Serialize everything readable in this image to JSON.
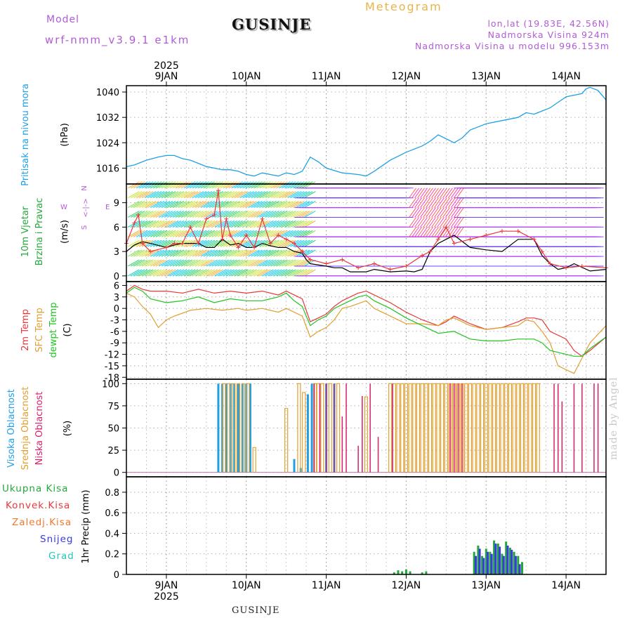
{
  "header": {
    "model_label": "Model",
    "model_name": "wrf-nmm_v3.9.1  e1km",
    "station": "GUSINJE",
    "title": "Meteogram",
    "lonlat": "lon,lat (19.83E, 42.56N)",
    "elevation": "Nadmorska Visina 924m",
    "model_elevation": "Nadmorska Visina u modelu 996.153m"
  },
  "footer": {
    "station": "GUSINJE",
    "watermark": "made by Angel"
  },
  "colors": {
    "pressure": "#1ea0e6",
    "temp2m": "#e8383a",
    "sfc_temp": "#e0a030",
    "dewpoint": "#22c422",
    "cloud_high": "#1ea0e6",
    "cloud_mid": "#e0a030",
    "cloud_low": "#d8206a",
    "precip_total": "#22a83a",
    "precip_conv": "#e8383a",
    "precip_large": "#f07a30",
    "snow": "#3a3ae0",
    "grad": "#20c8c0",
    "wind_mean": "#000000",
    "wind_gust": "#e8383a",
    "axis_label_wind": "#22a83a"
  },
  "chart_data": [
    {
      "type": "line",
      "panel": "pressure",
      "ylabel": [
        "Pritisak na nivou mora",
        "(hPa)"
      ],
      "yticks": [
        1016,
        1024,
        1032,
        1040
      ],
      "ylim": [
        1011,
        1042
      ],
      "grid": true,
      "top_axis": {
        "year": "2025",
        "days": [
          "9JAN",
          "10JAN",
          "11JAN",
          "12JAN",
          "13JAN",
          "14JAN"
        ]
      },
      "x_days": [
        8.5,
        14.5
      ],
      "series": [
        {
          "x": [
            8.5,
            8.6,
            8.75,
            8.9,
            9.0,
            9.1,
            9.2,
            9.3,
            9.4,
            9.5,
            9.6,
            9.7,
            9.8,
            9.9,
            10.0,
            10.1,
            10.2,
            10.3,
            10.4,
            10.5,
            10.6,
            10.65,
            10.7,
            10.8,
            10.9,
            11.0,
            11.2,
            11.4,
            11.5,
            11.6,
            11.8,
            12.0,
            12.2,
            12.3,
            12.4,
            12.6,
            12.7,
            12.8,
            13.0,
            13.2,
            13.4,
            13.5,
            13.6,
            13.8,
            14.0,
            14.2,
            14.25,
            14.3,
            14.4,
            14.5
          ],
          "y": [
            1016.5,
            1017,
            1018.5,
            1019.5,
            1020,
            1020,
            1019,
            1018.5,
            1017.5,
            1016.5,
            1016,
            1015.5,
            1015.5,
            1015,
            1014,
            1013.5,
            1014.5,
            1014,
            1013.5,
            1014.5,
            1014,
            1014.5,
            1015,
            1019.5,
            1018,
            1016,
            1014.5,
            1014,
            1013.5,
            1015,
            1018.5,
            1021,
            1023,
            1024.5,
            1026.5,
            1024,
            1025.5,
            1028,
            1030,
            1031,
            1032,
            1033.5,
            1033,
            1035,
            1038.5,
            1039.5,
            1041,
            1041.5,
            1040.5,
            1037.5
          ]
        }
      ]
    },
    {
      "type": "line",
      "panel": "wind",
      "ylabel": [
        "10m Vjetar",
        "Brzina i Pravac",
        "(m/s)"
      ],
      "compass": [
        "N",
        "W",
        "E",
        "S",
        "<-|->"
      ],
      "yticks": [
        0,
        3,
        6,
        9
      ],
      "ylim": [
        -0.7,
        11.3
      ],
      "grid": true,
      "series": [
        {
          "name": "mean",
          "x": [
            8.5,
            8.6,
            8.7,
            8.8,
            9.0,
            9.1,
            9.2,
            9.4,
            9.5,
            9.6,
            9.7,
            9.8,
            9.9,
            10.0,
            10.1,
            10.2,
            10.3,
            10.4,
            10.5,
            10.6,
            10.7,
            10.75,
            10.8,
            11.0,
            11.1,
            11.2,
            11.3,
            11.5,
            11.6,
            11.8,
            12.0,
            12.1,
            12.2,
            12.3,
            12.4,
            12.5,
            12.6,
            12.8,
            13.0,
            13.2,
            13.4,
            13.6,
            13.65,
            13.7,
            13.8,
            13.9,
            14.0,
            14.1,
            14.3,
            14.5
          ],
          "y": [
            3.0,
            3.8,
            4.2,
            4.0,
            3.5,
            3.8,
            4.0,
            4.0,
            3.5,
            3.5,
            4.5,
            3.8,
            4.0,
            3.5,
            3.5,
            4.0,
            3.7,
            3.5,
            3.5,
            3.0,
            2.8,
            2.0,
            1.5,
            1.2,
            1.0,
            1.0,
            0.5,
            0.5,
            0.8,
            0.5,
            0.6,
            0.5,
            0.8,
            3.0,
            4.0,
            4.5,
            5.0,
            3.5,
            3.2,
            3.0,
            4.5,
            4.5,
            3.5,
            2.5,
            1.5,
            0.8,
            1.0,
            1.5,
            0.6,
            0.8
          ]
        },
        {
          "name": "gust",
          "x": [
            8.5,
            8.6,
            8.65,
            8.7,
            8.8,
            9.0,
            9.1,
            9.2,
            9.3,
            9.4,
            9.5,
            9.6,
            9.65,
            9.7,
            9.75,
            9.8,
            9.9,
            10.0,
            10.1,
            10.2,
            10.3,
            10.4,
            10.5,
            10.6,
            10.7,
            10.8,
            11.0,
            11.2,
            11.4,
            11.6,
            11.8,
            12.0,
            12.2,
            12.3,
            12.4,
            12.5,
            12.6,
            12.8,
            13.0,
            13.2,
            13.4,
            13.6,
            13.7,
            13.8,
            14.0,
            14.2,
            14.5
          ],
          "y": [
            4.0,
            6.5,
            7.5,
            4.0,
            3.0,
            3.5,
            4.0,
            4.0,
            6.0,
            4.0,
            7.0,
            7.5,
            10.5,
            4.5,
            7.0,
            5.0,
            3.5,
            5.0,
            3.5,
            7.0,
            4.0,
            5.0,
            4.5,
            4.0,
            3.0,
            2.0,
            1.5,
            2.0,
            1.0,
            1.5,
            0.8,
            1.2,
            2.5,
            3.0,
            4.5,
            6.0,
            4.0,
            4.5,
            5.0,
            5.5,
            5.5,
            4.5,
            3.0,
            1.5,
            1.0,
            1.2,
            1.0
          ]
        }
      ],
      "vectors": {
        "rows": [
          0,
          1,
          2,
          3,
          4,
          5,
          6,
          7,
          8,
          9,
          10,
          11
        ],
        "note": "wind barb arrows colored by speed"
      }
    },
    {
      "type": "line",
      "panel": "temperature",
      "ylabel": [
        "2m Temp",
        "SFC Temp",
        "dewpt Temp",
        "(C)"
      ],
      "yticks": [
        -18,
        -15,
        -12,
        -9,
        -6,
        -3,
        0,
        3,
        6
      ],
      "ylim": [
        -18.5,
        7
      ],
      "grid": true,
      "series": [
        {
          "name": "2m Temp",
          "x": [
            8.5,
            8.6,
            8.7,
            8.8,
            9.0,
            9.2,
            9.4,
            9.6,
            9.8,
            10.0,
            10.2,
            10.4,
            10.5,
            10.6,
            10.7,
            10.8,
            10.9,
            11.0,
            11.1,
            11.2,
            11.3,
            11.4,
            11.5,
            11.6,
            11.8,
            12.0,
            12.2,
            12.4,
            12.5,
            12.6,
            12.8,
            13.0,
            13.2,
            13.4,
            13.5,
            13.6,
            13.7,
            13.8,
            14.0,
            14.1,
            14.2,
            14.3,
            14.5
          ],
          "y": [
            4.5,
            6.0,
            5.0,
            4.5,
            4.5,
            4.0,
            5.0,
            4.0,
            4.5,
            4.0,
            4.5,
            3.5,
            4.5,
            3.5,
            2.5,
            -3.5,
            -2.5,
            -1.5,
            0.5,
            2.0,
            3.0,
            4.0,
            4.5,
            3.5,
            1.5,
            -1.0,
            -3.0,
            -4.5,
            -3.5,
            -2.0,
            -4.0,
            -5.5,
            -5.0,
            -3.5,
            -2.5,
            -2.5,
            -3.0,
            -6.0,
            -8.0,
            -11.0,
            -12.5,
            -11.0,
            -7.5
          ]
        },
        {
          "name": "SFC Temp",
          "x": [
            8.5,
            8.6,
            8.7,
            8.8,
            8.9,
            9.0,
            9.1,
            9.3,
            9.5,
            9.7,
            9.9,
            10.0,
            10.2,
            10.4,
            10.5,
            10.6,
            10.7,
            10.8,
            10.9,
            11.0,
            11.1,
            11.2,
            11.3,
            11.5,
            11.6,
            11.8,
            12.0,
            12.2,
            12.4,
            12.5,
            12.6,
            12.8,
            13.0,
            13.2,
            13.4,
            13.5,
            13.6,
            13.7,
            13.8,
            13.9,
            14.0,
            14.1,
            14.2,
            14.3,
            14.5
          ],
          "y": [
            4.0,
            3.0,
            0.5,
            -1.5,
            -5.0,
            -3.0,
            -2.0,
            -0.5,
            0.0,
            -0.5,
            0.0,
            -0.5,
            0.0,
            -1.0,
            0.0,
            -1.0,
            -2.0,
            -7.5,
            -6.0,
            -5.0,
            -3.0,
            0.0,
            0.5,
            2.0,
            0.0,
            -2.0,
            -4.0,
            -4.0,
            -4.5,
            -3.0,
            -2.5,
            -4.5,
            -5.5,
            -5.0,
            -4.5,
            -3.0,
            -3.5,
            -6.0,
            -9.0,
            -15.0,
            -16.0,
            -17.0,
            -13.0,
            -9.0,
            -4.5
          ]
        },
        {
          "name": "dewpt Temp",
          "x": [
            8.5,
            8.6,
            8.7,
            8.8,
            9.0,
            9.2,
            9.4,
            9.6,
            9.8,
            10.0,
            10.2,
            10.4,
            10.5,
            10.6,
            10.7,
            10.8,
            10.9,
            11.0,
            11.1,
            11.2,
            11.3,
            11.4,
            11.5,
            11.6,
            11.8,
            12.0,
            12.2,
            12.4,
            12.6,
            12.8,
            13.0,
            13.2,
            13.4,
            13.5,
            13.6,
            13.7,
            13.8,
            14.0,
            14.1,
            14.2,
            14.3,
            14.5
          ],
          "y": [
            4.0,
            5.5,
            4.5,
            2.5,
            1.5,
            2.0,
            3.0,
            1.5,
            2.5,
            2.0,
            2.0,
            3.0,
            4.0,
            2.0,
            0.5,
            -4.5,
            -3.0,
            -2.0,
            0.0,
            1.0,
            2.0,
            3.0,
            3.5,
            2.0,
            0.0,
            -2.5,
            -4.5,
            -6.5,
            -6.0,
            -8.0,
            -8.5,
            -8.5,
            -8.0,
            -8.0,
            -8.0,
            -9.0,
            -11.0,
            -12.0,
            -12.5,
            -12.5,
            -10.5,
            -7.5
          ]
        }
      ]
    },
    {
      "type": "bar",
      "panel": "clouds",
      "ylabel": [
        "Visoka Oblacnost",
        "Srednja Oblacnost",
        "Niska Oblacnost",
        "(%)"
      ],
      "yticks": [
        0,
        25,
        50,
        75,
        100
      ],
      "ylim": [
        -5,
        105
      ],
      "grid": true,
      "series": [
        {
          "name": "Visoka Oblacnost",
          "x": [
            9.65,
            9.7,
            9.75,
            9.8,
            9.85,
            9.9,
            9.95,
            10.0,
            10.05,
            10.6,
            10.68,
            10.77,
            10.82,
            11.0,
            11.1
          ],
          "y": [
            100,
            100,
            100,
            100,
            100,
            100,
            100,
            100,
            100,
            15,
            5,
            88,
            100,
            100,
            100
          ]
        },
        {
          "name": "Srednja Oblacnost",
          "x": [
            9.72,
            9.78,
            9.84,
            9.9,
            9.96,
            10.02,
            10.1,
            10.5,
            10.66,
            10.72,
            10.86,
            10.9,
            10.95,
            11.05,
            11.15,
            11.5,
            11.8,
            11.85,
            11.9,
            11.95,
            12.0,
            12.05,
            12.1,
            12.15,
            12.2,
            12.25,
            12.3,
            12.35,
            12.4,
            12.45,
            12.5,
            12.55,
            12.6,
            12.65,
            12.7,
            12.75,
            12.8,
            12.85,
            12.9,
            12.95,
            13.0,
            13.05,
            13.1,
            13.15,
            13.2,
            13.25,
            13.3,
            13.35,
            13.4,
            13.45,
            13.5,
            13.55,
            13.6,
            13.65
          ],
          "y": [
            100,
            100,
            100,
            100,
            100,
            100,
            28,
            72,
            100,
            90,
            100,
            100,
            100,
            100,
            100,
            85,
            100,
            100,
            100,
            100,
            100,
            100,
            100,
            100,
            100,
            100,
            100,
            100,
            100,
            100,
            100,
            100,
            100,
            100,
            100,
            100,
            100,
            100,
            100,
            100,
            100,
            100,
            100,
            100,
            100,
            100,
            100,
            100,
            100,
            100,
            100,
            100,
            100,
            100
          ]
        },
        {
          "name": "Niska Oblacnost",
          "x": [
            10.85,
            10.92,
            11.0,
            11.1,
            11.2,
            11.25,
            11.4,
            11.45,
            11.55,
            11.65,
            11.83,
            12.55,
            12.6,
            12.65,
            12.7,
            13.85,
            13.9,
            13.95,
            14.1,
            14.2,
            14.35,
            14.4
          ],
          "y": [
            100,
            100,
            100,
            100,
            63,
            100,
            30,
            86,
            100,
            40,
            100,
            100,
            100,
            100,
            100,
            100,
            100,
            80,
            100,
            100,
            100,
            100
          ]
        }
      ]
    },
    {
      "type": "bar",
      "panel": "precipitation",
      "ylabel": [
        "1hr Precip (mm)"
      ],
      "legend": [
        "Ukupna Kisa",
        "Konvek.Kisa",
        "Zaledj.Kisa",
        "Snijeg",
        "Grad"
      ],
      "yticks": [
        0,
        0.2,
        0.4,
        0.6,
        0.8
      ],
      "ylim": [
        0,
        0.95
      ],
      "grid": true,
      "bottom_axis": {
        "days": [
          "9JAN",
          "10JAN",
          "11JAN",
          "12JAN",
          "13JAN",
          "14JAN"
        ],
        "year": "2025"
      },
      "series": [
        {
          "name": "Ukupna Kisa",
          "x": [
            11.85,
            11.9,
            11.95,
            12.0,
            12.05,
            12.2,
            12.25,
            12.85,
            12.9,
            12.95,
            13.0,
            13.05,
            13.1,
            13.15,
            13.2,
            13.25,
            13.3,
            13.35,
            13.4,
            13.45
          ],
          "y": [
            0.02,
            0.04,
            0.03,
            0.05,
            0.03,
            0.02,
            0.03,
            0.22,
            0.28,
            0.18,
            0.25,
            0.22,
            0.33,
            0.3,
            0.2,
            0.32,
            0.26,
            0.22,
            0.18,
            0.12
          ]
        },
        {
          "name": "Snijeg",
          "x": [
            12.87,
            12.92,
            12.97,
            13.02,
            13.07,
            13.12,
            13.17,
            13.22,
            13.27,
            13.32,
            13.37,
            13.42
          ],
          "y": [
            0.18,
            0.25,
            0.16,
            0.22,
            0.2,
            0.3,
            0.27,
            0.18,
            0.28,
            0.24,
            0.18,
            0.1
          ]
        }
      ]
    }
  ]
}
